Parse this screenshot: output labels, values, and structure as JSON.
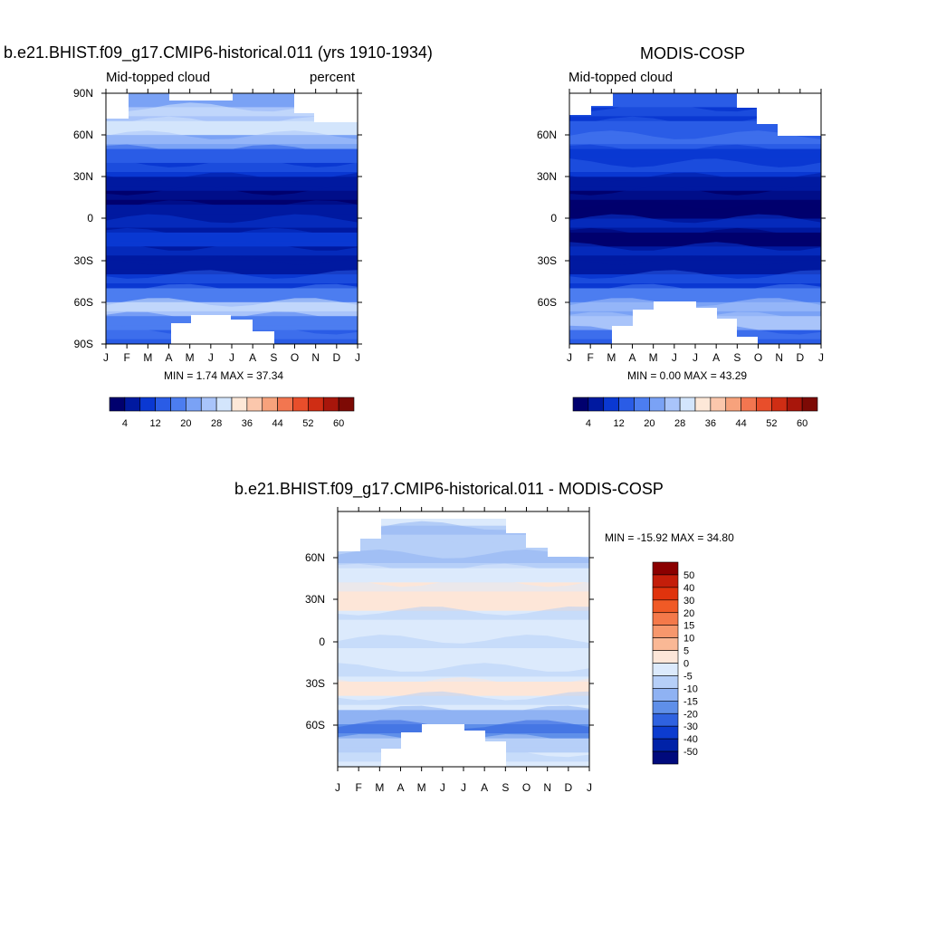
{
  "chart_data": [
    {
      "type": "heatmap",
      "id": "p1",
      "title": "b.e21.BHIST.f09_g17.CMIP6-historical.011 (yrs 1910-1934)",
      "left_label": "Mid-topped cloud",
      "right_label": "percent",
      "xticks": [
        "J",
        "F",
        "M",
        "A",
        "M",
        "J",
        "J",
        "A",
        "S",
        "O",
        "N",
        "D",
        "J"
      ],
      "yticks": [
        "90N",
        "60N",
        "30N",
        "0",
        "30S",
        "60S",
        "90S"
      ],
      "ylim": [
        -90,
        90
      ],
      "minmax": "MIN =   1.74 MAX =  37.34",
      "levels": [
        "4",
        "12",
        "20",
        "28",
        "36",
        "44",
        "52",
        "60"
      ],
      "palette": [
        "#00006e",
        "#0019a0",
        "#0a38d2",
        "#2a5ce6",
        "#4c7df0",
        "#7aa2f5",
        "#a9c4fa",
        "#d3e5fc",
        "#fde8d8",
        "#fbc7ac",
        "#f7a27c",
        "#f27650",
        "#e84e2b",
        "#cf2d14",
        "#a8160b",
        "#7d0a05"
      ],
      "bands": [
        {
          "lat": 90,
          "level": 5
        },
        {
          "lat": 80,
          "level": 6
        },
        {
          "lat": 70,
          "level": 7
        },
        {
          "lat": 60,
          "level": 5
        },
        {
          "lat": 50,
          "level": 3
        },
        {
          "lat": 40,
          "level": 2
        },
        {
          "lat": 30,
          "level": 1
        },
        {
          "lat": 20,
          "level": 0
        },
        {
          "lat": 10,
          "level": 1
        },
        {
          "lat": 0,
          "level": 1
        },
        {
          "lat": -10,
          "level": 2
        },
        {
          "lat": -20,
          "level": 1
        },
        {
          "lat": -30,
          "level": 1
        },
        {
          "lat": -40,
          "level": 2
        },
        {
          "lat": -50,
          "level": 4
        },
        {
          "lat": -60,
          "level": 6
        },
        {
          "lat": -70,
          "level": 4
        },
        {
          "lat": -80,
          "level": 3
        },
        {
          "lat": -90,
          "level": 3
        }
      ]
    },
    {
      "type": "heatmap",
      "id": "p2",
      "title": "MODIS-COSP",
      "left_label": "Mid-topped cloud",
      "right_label": "",
      "xticks": [
        "J",
        "F",
        "M",
        "A",
        "M",
        "J",
        "J",
        "A",
        "S",
        "O",
        "N",
        "D",
        "J"
      ],
      "yticks": [
        "60N",
        "30N",
        "0",
        "30S",
        "60S"
      ],
      "ylim": [
        -90,
        90
      ],
      "minmax": "MIN =   0.00 MAX =  43.29",
      "levels": [
        "4",
        "12",
        "20",
        "28",
        "36",
        "44",
        "52",
        "60"
      ],
      "palette": [
        "#00006e",
        "#0019a0",
        "#0a38d2",
        "#2a5ce6",
        "#4c7df0",
        "#7aa2f5",
        "#a9c4fa",
        "#d3e5fc",
        "#fde8d8",
        "#fbc7ac",
        "#f7a27c",
        "#f27650",
        "#e84e2b",
        "#cf2d14",
        "#a8160b",
        "#7d0a05"
      ],
      "bands": [
        {
          "lat": 90,
          "level": 3
        },
        {
          "lat": 80,
          "level": 2
        },
        {
          "lat": 70,
          "level": 3
        },
        {
          "lat": 60,
          "level": 3
        },
        {
          "lat": 50,
          "level": 2
        },
        {
          "lat": 40,
          "level": 2
        },
        {
          "lat": 30,
          "level": 1
        },
        {
          "lat": 20,
          "level": 0
        },
        {
          "lat": 10,
          "level": 0
        },
        {
          "lat": 0,
          "level": 1
        },
        {
          "lat": -10,
          "level": 0
        },
        {
          "lat": -20,
          "level": 1
        },
        {
          "lat": -30,
          "level": 1
        },
        {
          "lat": -40,
          "level": 2
        },
        {
          "lat": -50,
          "level": 4
        },
        {
          "lat": -60,
          "level": 5
        },
        {
          "lat": -70,
          "level": 6
        },
        {
          "lat": -80,
          "level": 3
        },
        {
          "lat": -90,
          "level": 2
        }
      ]
    },
    {
      "type": "heatmap",
      "id": "p3",
      "title": "b.e21.BHIST.f09_g17.CMIP6-historical.011 - MODIS-COSP",
      "xticks": [
        "J",
        "F",
        "M",
        "A",
        "M",
        "J",
        "J",
        "A",
        "S",
        "O",
        "N",
        "D",
        "J"
      ],
      "yticks": [
        "60N",
        "30N",
        "0",
        "30S",
        "60S"
      ],
      "ylim": [
        -90,
        90
      ],
      "minmax": "MIN = -15.92 MAX =  34.80",
      "levels": [
        "50",
        "40",
        "30",
        "20",
        "15",
        "10",
        "5",
        "0",
        "-5",
        "-10",
        "-15",
        "-20",
        "-30",
        "-40",
        "-50"
      ],
      "palette": [
        "#8b0000",
        "#c41e0a",
        "#e0330d",
        "#f05a26",
        "#f4794a",
        "#f7976c",
        "#fab895",
        "#fde6d8",
        "#dceafc",
        "#b6cff8",
        "#8fb2f3",
        "#5f8fe9",
        "#2f62e0",
        "#0c3ccf",
        "#0022a8",
        "#000a7c"
      ],
      "bands": [
        {
          "lat": 90,
          "level": 8
        },
        {
          "lat": 80,
          "level": 9
        },
        {
          "lat": 70,
          "level": 9
        },
        {
          "lat": 60,
          "level": 9
        },
        {
          "lat": 50,
          "level": 8
        },
        {
          "lat": 40,
          "level": 7
        },
        {
          "lat": 30,
          "level": 7
        },
        {
          "lat": 20,
          "level": 8
        },
        {
          "lat": 10,
          "level": 8
        },
        {
          "lat": 0,
          "level": 8
        },
        {
          "lat": -10,
          "level": 8
        },
        {
          "lat": -20,
          "level": 8
        },
        {
          "lat": -30,
          "level": 7
        },
        {
          "lat": -40,
          "level": 8
        },
        {
          "lat": -50,
          "level": 10
        },
        {
          "lat": -60,
          "level": 11
        },
        {
          "lat": -70,
          "level": 9
        },
        {
          "lat": -80,
          "level": 8
        },
        {
          "lat": -90,
          "level": 8
        }
      ]
    }
  ]
}
